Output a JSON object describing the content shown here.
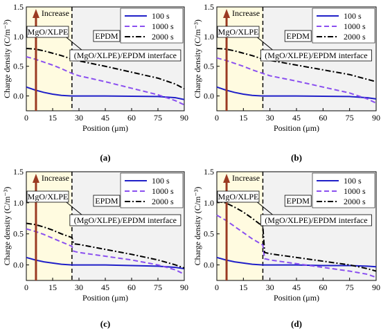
{
  "figure": {
    "panel_labels": [
      "(a)",
      "(b)",
      "(c)",
      "(d)"
    ],
    "colors": {
      "s100": "#1f1fc8",
      "s1000": "#8a4ff0",
      "s2000": "#000000",
      "xlpe_zone": "#fffbe0",
      "epdm_zone": "#f2f2f2",
      "arrow": "#9b3a22"
    }
  },
  "chart_data": [
    {
      "type": "line",
      "panel": "(a)",
      "xlabel": "Position  (μm)",
      "ylabel": "Charge density  (C/m⁻³)",
      "xlim": [
        0,
        90
      ],
      "ylim": [
        -0.25,
        1.5
      ],
      "xticks": [
        0,
        15,
        30,
        45,
        60,
        75,
        90
      ],
      "yticks": [
        0.0,
        0.5,
        1.0,
        1.5
      ],
      "interface_x": 26,
      "annotations": {
        "arrow_label": "Increase",
        "left_region": "MgO/XLPE",
        "right_region": "EPDM",
        "interface_label": "(MgO/XLPE)/EPDM  interface"
      },
      "legend": {
        "placement": "top-right",
        "entries": [
          "100 s",
          "1000 s",
          "2000 s"
        ]
      },
      "series": [
        {
          "name": "100 s",
          "style": "solid",
          "x": [
            0,
            5,
            10,
            15,
            20,
            26,
            30,
            45,
            60,
            75,
            85,
            90
          ],
          "y": [
            0.15,
            0.1,
            0.06,
            0.03,
            0.01,
            0.0,
            0.0,
            0.0,
            -0.005,
            -0.01,
            -0.03,
            -0.06
          ]
        },
        {
          "name": "1000 s",
          "style": "dashed",
          "x": [
            0,
            5,
            10,
            15,
            20,
            26,
            30,
            45,
            60,
            75,
            85,
            90
          ],
          "y": [
            0.66,
            0.62,
            0.57,
            0.52,
            0.46,
            0.38,
            0.34,
            0.24,
            0.13,
            0.02,
            -0.08,
            -0.15
          ]
        },
        {
          "name": "2000 s",
          "style": "dashdot",
          "x": [
            0,
            5,
            10,
            15,
            20,
            26,
            30,
            45,
            60,
            75,
            85,
            90
          ],
          "y": [
            0.8,
            0.79,
            0.76,
            0.72,
            0.68,
            0.62,
            0.59,
            0.5,
            0.4,
            0.3,
            0.2,
            0.12
          ]
        }
      ]
    },
    {
      "type": "line",
      "panel": "(b)",
      "xlabel": "Position  (μm)",
      "ylabel": "Charge density  (C/m⁻³)",
      "xlim": [
        0,
        90
      ],
      "ylim": [
        -0.25,
        1.5
      ],
      "xticks": [
        0,
        15,
        30,
        45,
        60,
        75,
        90
      ],
      "yticks": [
        0.0,
        0.5,
        1.0,
        1.5
      ],
      "interface_x": 26,
      "annotations": {
        "arrow_label": "Increase",
        "left_region": "MgO/XLPE",
        "right_region": "EPDM",
        "interface_label": "(MgO/XLPE)/EPDM interface"
      },
      "legend": {
        "placement": "top-right",
        "entries": [
          "100 s",
          "1000 s",
          "2000 s"
        ]
      },
      "series": [
        {
          "name": "100 s",
          "style": "solid",
          "x": [
            0,
            5,
            10,
            15,
            20,
            26,
            30,
            45,
            60,
            75,
            85,
            90
          ],
          "y": [
            0.15,
            0.1,
            0.06,
            0.03,
            0.01,
            0.0,
            0.0,
            0.0,
            -0.005,
            -0.01,
            -0.03,
            -0.05
          ]
        },
        {
          "name": "1000 s",
          "style": "dashed",
          "x": [
            0,
            5,
            10,
            15,
            20,
            26,
            30,
            45,
            60,
            75,
            85,
            90
          ],
          "y": [
            0.64,
            0.6,
            0.55,
            0.5,
            0.44,
            0.38,
            0.34,
            0.25,
            0.15,
            0.05,
            -0.05,
            -0.12
          ]
        },
        {
          "name": "2000 s",
          "style": "dashdot",
          "x": [
            0,
            5,
            10,
            15,
            20,
            26,
            30,
            45,
            60,
            75,
            85,
            90
          ],
          "y": [
            0.8,
            0.79,
            0.76,
            0.72,
            0.68,
            0.62,
            0.6,
            0.52,
            0.44,
            0.36,
            0.28,
            0.24
          ]
        }
      ]
    },
    {
      "type": "line",
      "panel": "(c)",
      "xlabel": "Position  (μm)",
      "ylabel": "Charge density  (C/m⁻³)",
      "xlim": [
        0,
        90
      ],
      "ylim": [
        -0.25,
        1.5
      ],
      "xticks": [
        0,
        15,
        30,
        45,
        60,
        75,
        90
      ],
      "yticks": [
        0.0,
        0.5,
        1.0,
        1.5
      ],
      "interface_x": 26,
      "annotations": {
        "arrow_label": "Increase",
        "left_region": "MgO/XLPE",
        "right_region": "EPDM",
        "interface_label": "(MgO/XLPE)/EPDM interface"
      },
      "legend": {
        "placement": "top-right",
        "entries": [
          "100 s",
          "1000 s",
          "2000 s"
        ]
      },
      "series": [
        {
          "name": "100 s",
          "style": "solid",
          "x": [
            0,
            5,
            10,
            15,
            20,
            26,
            30,
            45,
            60,
            75,
            85,
            90
          ],
          "y": [
            0.12,
            0.08,
            0.05,
            0.03,
            0.01,
            0.0,
            0.0,
            0.0,
            -0.01,
            -0.02,
            -0.04,
            -0.06
          ]
        },
        {
          "name": "1000 s",
          "style": "dashed",
          "x": [
            0,
            5,
            10,
            15,
            20,
            26,
            27,
            30,
            45,
            60,
            75,
            85,
            90
          ],
          "y": [
            0.58,
            0.54,
            0.49,
            0.43,
            0.37,
            0.3,
            0.22,
            0.2,
            0.14,
            0.08,
            0.0,
            -0.08,
            -0.15
          ]
        },
        {
          "name": "2000 s",
          "style": "dashdot",
          "x": [
            0,
            5,
            10,
            15,
            20,
            26,
            27,
            30,
            45,
            60,
            75,
            85,
            90
          ],
          "y": [
            0.67,
            0.65,
            0.61,
            0.56,
            0.5,
            0.44,
            0.34,
            0.33,
            0.25,
            0.17,
            0.08,
            0.0,
            -0.05
          ]
        }
      ]
    },
    {
      "type": "line",
      "panel": "(d)",
      "xlabel": "Position  (μm)",
      "ylabel": "Charge density  (C/m⁻³)",
      "xlim": [
        0,
        90
      ],
      "ylim": [
        -0.25,
        1.5
      ],
      "xticks": [
        0,
        15,
        30,
        45,
        60,
        75,
        90
      ],
      "yticks": [
        0.0,
        0.5,
        1.0,
        1.5
      ],
      "interface_x": 26,
      "annotations": {
        "arrow_label": "Increase",
        "left_region": "MgO/XLPE",
        "right_region": "EPDM",
        "interface_label": "(MgO/XLPE)/EPDM interface"
      },
      "legend": {
        "placement": "top-right",
        "entries": [
          "100 s",
          "1000 s",
          "2000 s"
        ]
      },
      "series": [
        {
          "name": "100 s",
          "style": "solid",
          "x": [
            0,
            5,
            10,
            15,
            20,
            26,
            30,
            45,
            60,
            75,
            85,
            90
          ],
          "y": [
            0.12,
            0.08,
            0.05,
            0.03,
            0.01,
            0.0,
            0.0,
            0.0,
            -0.01,
            -0.01,
            -0.02,
            -0.03
          ]
        },
        {
          "name": "1000 s",
          "style": "dashed",
          "x": [
            0,
            5,
            10,
            15,
            20,
            26,
            27,
            30,
            45,
            60,
            75,
            85,
            90
          ],
          "y": [
            0.8,
            0.72,
            0.62,
            0.52,
            0.42,
            0.32,
            0.1,
            0.08,
            0.02,
            -0.04,
            -0.1,
            -0.15,
            -0.2
          ]
        },
        {
          "name": "2000 s",
          "style": "dashdot",
          "x": [
            0,
            5,
            10,
            15,
            20,
            26,
            27,
            30,
            45,
            60,
            75,
            85,
            90
          ],
          "y": [
            1.02,
            1.0,
            0.93,
            0.85,
            0.75,
            0.62,
            0.2,
            0.18,
            0.12,
            0.06,
            0.0,
            -0.06,
            -0.1
          ]
        }
      ]
    }
  ]
}
